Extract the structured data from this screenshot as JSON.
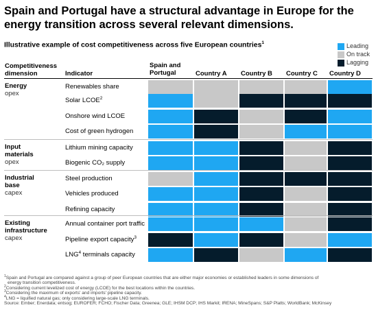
{
  "title": "Spain and Portugal have a structural advantage in Europe for the energy transition across several relevant dimensions.",
  "subtitle": "Illustrative example of cost competitiveness across five European countries",
  "subtitle_note": "1",
  "legend": [
    {
      "label": "Leading",
      "color": "#1fa7f2"
    },
    {
      "label": "On track",
      "color": "#c8c8c8"
    },
    {
      "label": "Lagging",
      "color": "#051c2c"
    }
  ],
  "headers": {
    "dimension_line1": "Competitiveness",
    "dimension_line2": "dimension",
    "indicator": "Indicator",
    "columns": [
      "Spain and Portugal",
      "Country A",
      "Country B",
      "Country C",
      "Country D"
    ]
  },
  "chart_data": {
    "type": "table",
    "status_scale": [
      "Leading",
      "On track",
      "Lagging"
    ],
    "groups": [
      {
        "name": [
          "Energy"
        ],
        "sub": "opex",
        "rows": [
          {
            "indicator": "Renewables share",
            "note": "",
            "values": [
              "On track",
              "On track",
              "On track",
              "On track",
              "Leading"
            ]
          },
          {
            "indicator": "Solar LCOE",
            "note": "2",
            "values": [
              "Leading",
              "On track",
              "Lagging",
              "Lagging",
              "Lagging"
            ]
          },
          {
            "indicator": "Onshore wind LCOE",
            "note": "",
            "values": [
              "Leading",
              "Lagging",
              "On track",
              "Lagging",
              "Leading"
            ]
          },
          {
            "indicator": "Cost of green hydrogen",
            "note": "",
            "values": [
              "Leading",
              "Lagging",
              "On track",
              "Leading",
              "Leading"
            ]
          }
        ]
      },
      {
        "name": [
          "Input",
          "materials"
        ],
        "sub": "opex",
        "rows": [
          {
            "indicator": "Lithium mining capacity",
            "note": "",
            "values": [
              "Leading",
              "Leading",
              "Lagging",
              "On track",
              "Lagging"
            ]
          },
          {
            "indicator": "Biogenic CO₂ supply",
            "note": "",
            "values": [
              "Leading",
              "Leading",
              "Lagging",
              "On track",
              "Lagging"
            ]
          }
        ]
      },
      {
        "name": [
          "Industrial",
          "base"
        ],
        "sub": "capex",
        "rows": [
          {
            "indicator": "Steel production",
            "note": "",
            "values": [
              "On track",
              "Leading",
              "Lagging",
              "Lagging",
              "Lagging"
            ]
          },
          {
            "indicator": "Vehicles produced",
            "note": "",
            "values": [
              "Leading",
              "Leading",
              "Lagging",
              "On track",
              "Lagging"
            ]
          },
          {
            "indicator": "Refining capacity",
            "note": "",
            "values": [
              "Leading",
              "Leading",
              "Lagging",
              "On track",
              "Lagging"
            ]
          }
        ]
      },
      {
        "name": [
          "Existing",
          "infrastructure"
        ],
        "sub": "capex",
        "rows": [
          {
            "indicator": "Annual container port traffic",
            "note": "",
            "values": [
              "Leading",
              "Leading",
              "Leading",
              "On track",
              "Lagging"
            ]
          },
          {
            "indicator": "Pipeline export capacity",
            "note": "3",
            "values": [
              "Lagging",
              "Leading",
              "Lagging",
              "On track",
              "Leading"
            ]
          },
          {
            "indicator": "LNG",
            "note": "4",
            "suffix": " terminals capacity",
            "values": [
              "Leading",
              "Lagging",
              "On track",
              "Leading",
              "Lagging"
            ]
          }
        ]
      }
    ]
  },
  "footnotes": [
    {
      "n": "1",
      "text": "Spain and Portugal are compared against a group of peer European countries that are either major economies or established leaders in some dimensions of"
    },
    {
      "n": "",
      "text": "energy transition competitiveness."
    },
    {
      "n": "2",
      "text": "Considering current levelized cost of energy (LCOE) for the best locations within the countries."
    },
    {
      "n": "3",
      "text": "Considering the maximum of exports' and imports' pipeline capacity."
    },
    {
      "n": "4",
      "text": "LNG = liquified natural gas; only considering large-scale LNG terminals."
    },
    {
      "n": "",
      "text": "Source: Ember; Enerdata; entsog; EUROFER; FCHO; Fischer Data; Greenea; GLE; IHSM DCP; IHS Markit; IRENA; MineSpans; S&P Platts; WorldBank; McKinsey"
    }
  ]
}
